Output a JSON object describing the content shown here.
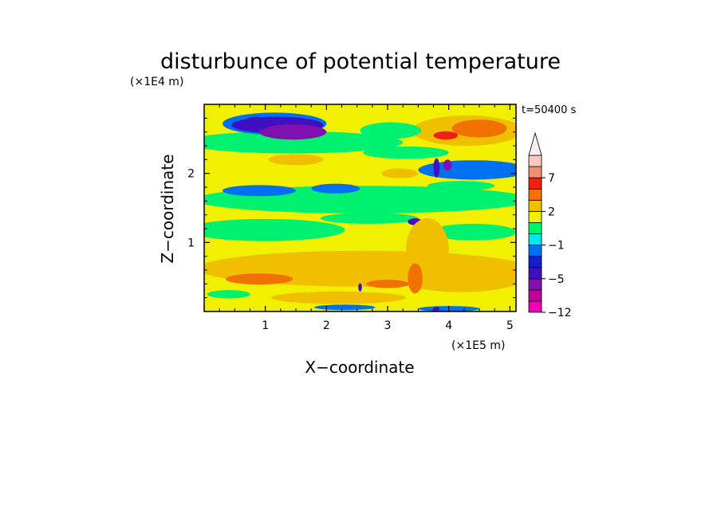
{
  "chart_data": {
    "type": "heatmap",
    "title": "disturbunce of potential temperature",
    "time_label": "t=50400 s",
    "xlabel": "X−coordinate",
    "ylabel": "Z−coordinate",
    "x_scale_note": "(×1E5 m)",
    "y_scale_note": "(×1E4 m)",
    "x_range": [
      0.0,
      5.1
    ],
    "y_range": [
      0.0,
      3.0
    ],
    "x_ticks": [
      {
        "v": 1,
        "label": "1"
      },
      {
        "v": 2,
        "label": "2"
      },
      {
        "v": 3,
        "label": "3"
      },
      {
        "v": 4,
        "label": "4"
      },
      {
        "v": 5,
        "label": "5"
      }
    ],
    "y_ticks": [
      {
        "v": 1,
        "label": "1"
      },
      {
        "v": 2,
        "label": "2"
      }
    ],
    "colorbar": {
      "levels": [
        -12,
        -9,
        -7,
        -5,
        -3,
        -2,
        -1,
        0,
        1,
        2,
        3,
        5,
        7,
        9,
        12
      ],
      "colors": [
        "#f000b4",
        "#c0009c",
        "#8010b0",
        "#4010c0",
        "#1020d0",
        "#0070f0",
        "#00e8f0",
        "#00f070",
        "#f0f000",
        "#f0c000",
        "#f07000",
        "#f02010",
        "#f09070",
        "#f8c8c0"
      ],
      "extend_top_color": "#f8f0f0",
      "labels": [
        {
          "v": -12,
          "label": "−12"
        },
        {
          "v": -5,
          "label": "−5"
        },
        {
          "v": -1,
          "label": "−1"
        },
        {
          "v": 2,
          "label": "2"
        },
        {
          "v": 7,
          "label": "7"
        }
      ]
    },
    "features": [
      {
        "type": "ellipse",
        "x": 2.6,
        "y": 0.62,
        "rx": 2.7,
        "ry": 0.26,
        "v": 2.4
      },
      {
        "type": "ellipse",
        "x": 4.2,
        "y": 0.48,
        "rx": 1.0,
        "ry": 0.2,
        "v": 2.2
      },
      {
        "type": "ellipse",
        "x": 0.9,
        "y": 0.47,
        "rx": 0.55,
        "ry": 0.08,
        "v": 3.4
      },
      {
        "type": "ellipse",
        "x": 2.2,
        "y": 0.2,
        "rx": 1.1,
        "ry": 0.09,
        "v": 2.2
      },
      {
        "type": "ellipse",
        "x": 2.6,
        "y": 1.62,
        "rx": 2.75,
        "ry": 0.2,
        "v": 0.5
      },
      {
        "type": "ellipse",
        "x": 1.0,
        "y": 1.18,
        "rx": 1.3,
        "ry": 0.16,
        "v": 0.5
      },
      {
        "type": "ellipse",
        "x": 2.7,
        "y": 1.35,
        "rx": 0.8,
        "ry": 0.08,
        "v": 0.55
      },
      {
        "type": "ellipse",
        "x": 4.4,
        "y": 1.15,
        "rx": 0.7,
        "ry": 0.12,
        "v": 0.6
      },
      {
        "type": "ellipse",
        "x": 0.9,
        "y": 1.75,
        "rx": 0.6,
        "ry": 0.08,
        "v": -1.5
      },
      {
        "type": "ellipse",
        "x": 2.15,
        "y": 1.78,
        "rx": 0.4,
        "ry": 0.07,
        "v": -1.5
      },
      {
        "type": "ellipse",
        "x": 1.45,
        "y": 2.45,
        "rx": 1.8,
        "ry": 0.16,
        "v": 0.5
      },
      {
        "type": "ellipse",
        "x": 3.3,
        "y": 2.3,
        "rx": 0.7,
        "ry": 0.09,
        "v": 0.5
      },
      {
        "type": "ellipse",
        "x": 4.4,
        "y": 2.05,
        "rx": 0.9,
        "ry": 0.14,
        "v": -1.5
      },
      {
        "type": "ellipse",
        "x": 4.2,
        "y": 1.82,
        "rx": 0.55,
        "ry": 0.07,
        "v": 0.5
      },
      {
        "type": "ellipse",
        "x": 1.15,
        "y": 2.72,
        "rx": 0.85,
        "ry": 0.16,
        "v": -1.5
      },
      {
        "type": "ellipse",
        "x": 1.2,
        "y": 2.7,
        "rx": 0.75,
        "ry": 0.12,
        "v": -4.5
      },
      {
        "type": "ellipse",
        "x": 1.45,
        "y": 2.6,
        "rx": 0.55,
        "ry": 0.11,
        "v": -6.2
      },
      {
        "type": "ellipse",
        "x": 0.85,
        "y": 2.72,
        "rx": 0.22,
        "ry": 0.1,
        "v": -4.3
      },
      {
        "type": "ellipse",
        "x": 4.3,
        "y": 2.62,
        "rx": 0.9,
        "ry": 0.22,
        "v": 2.3
      },
      {
        "type": "ellipse",
        "x": 4.5,
        "y": 2.65,
        "rx": 0.45,
        "ry": 0.13,
        "v": 3.5
      },
      {
        "type": "ellipse",
        "x": 3.95,
        "y": 2.55,
        "rx": 0.2,
        "ry": 0.06,
        "v": 5.5
      },
      {
        "type": "ellipse",
        "x": 3.05,
        "y": 2.62,
        "rx": 0.5,
        "ry": 0.12,
        "v": 0.5
      },
      {
        "type": "ellipse",
        "x": 1.5,
        "y": 2.2,
        "rx": 0.45,
        "ry": 0.08,
        "v": 2.4
      },
      {
        "type": "ellipse",
        "x": 3.2,
        "y": 2.0,
        "rx": 0.3,
        "ry": 0.07,
        "v": 2.4
      },
      {
        "type": "ellipse",
        "x": 3.8,
        "y": 2.08,
        "rx": 0.05,
        "ry": 0.14,
        "v": -4.5
      },
      {
        "type": "ellipse",
        "x": 3.98,
        "y": 2.12,
        "rx": 0.07,
        "ry": 0.08,
        "v": -5.8
      },
      {
        "type": "ellipse",
        "x": 3.45,
        "y": 1.3,
        "rx": 0.12,
        "ry": 0.05,
        "v": -3.5
      },
      {
        "type": "ellipse",
        "x": 3.65,
        "y": 0.9,
        "rx": 0.35,
        "ry": 0.45,
        "v": 2.3
      },
      {
        "type": "ellipse",
        "x": 3.0,
        "y": 0.4,
        "rx": 0.35,
        "ry": 0.06,
        "v": 3.2
      },
      {
        "type": "ellipse",
        "x": 3.45,
        "y": 0.48,
        "rx": 0.12,
        "ry": 0.22,
        "v": 3.3
      },
      {
        "type": "ellipse",
        "x": 2.3,
        "y": 0.06,
        "rx": 0.5,
        "ry": 0.04,
        "v": -1.5
      },
      {
        "type": "ellipse",
        "x": 4.0,
        "y": 0.04,
        "rx": 0.5,
        "ry": 0.04,
        "v": -1.5
      },
      {
        "type": "ellipse",
        "x": 0.4,
        "y": 0.25,
        "rx": 0.35,
        "ry": 0.06,
        "v": 0.5
      },
      {
        "type": "ellipse",
        "x": 2.55,
        "y": 0.35,
        "rx": 0.03,
        "ry": 0.06,
        "v": -4.8
      },
      {
        "type": "ellipse",
        "x": 3.8,
        "y": 0.04,
        "rx": 0.05,
        "ry": 0.03,
        "v": -4.8
      }
    ]
  }
}
